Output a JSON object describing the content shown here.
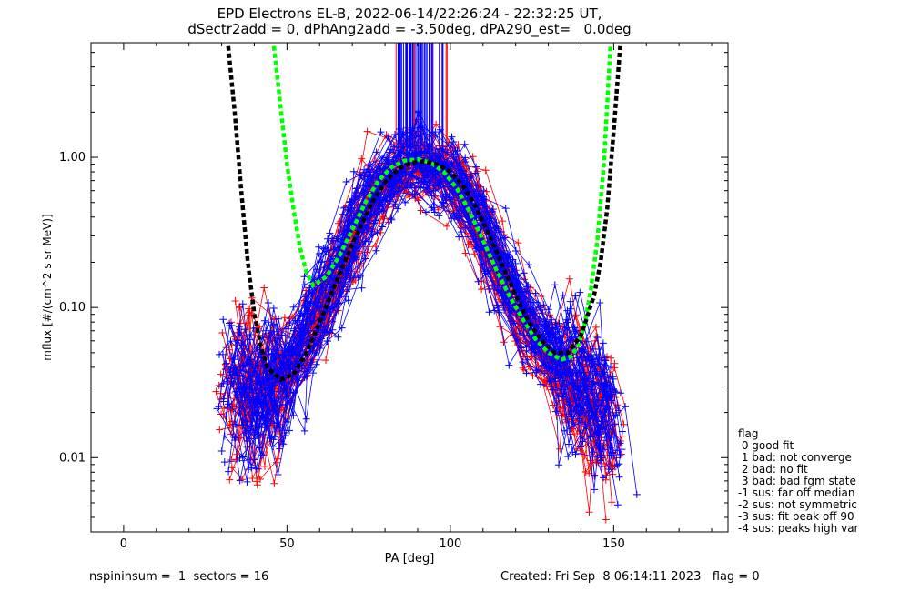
{
  "title_line1": "EPD Electrons EL-B, 2022-06-14/22:26:24 - 22:32:25 UT,",
  "title_line2": "dSectr2add = 0, dPhAng2add = -3.50deg, dPA290_est=   0.0deg",
  "flag_legend": {
    "header": "flag",
    "items": [
      " 0 good fit",
      " 1 bad: not converge",
      " 2 bad: no fit",
      " 3 bad: bad fgm state",
      "-1 sus: far off median",
      "-2 sus: not symmetric",
      "-3 sus: fit peak off 90",
      "-4 sus: peaks high var"
    ]
  },
  "footer": {
    "left": "nspininsum =  1  sectors = 16",
    "right": "Created: Fri Sep  8 06:14:11 2023   flag = 0"
  },
  "colors": {
    "series_red": "#ff0000",
    "series_blue": "#0000ff",
    "fit_green": "#00ff00",
    "fit_black": "#000000"
  },
  "chart_data": {
    "type": "line",
    "xlabel": "PA [deg]",
    "ylabel": "mflux [#/(cm^2 s sr MeV)]",
    "xlim": [
      -10,
      185
    ],
    "ylim": [
      0.0032,
      5.8
    ],
    "yscale": "log",
    "x_ticks": [
      0,
      50,
      100,
      150
    ],
    "x_tick_labels": [
      "0",
      "50",
      "100",
      "150"
    ],
    "y_ticks": [
      0.01,
      0.1,
      1.0
    ],
    "y_tick_labels": [
      "0.01",
      "0.10",
      "1.00"
    ],
    "series": [
      {
        "color": "red",
        "x": [
          33,
          38,
          42,
          46,
          50,
          55,
          60,
          65,
          70,
          75,
          80,
          85,
          90,
          95,
          100,
          105,
          110,
          115,
          120,
          125,
          130,
          135,
          140,
          145,
          148
        ],
        "y": [
          0.035,
          0.03,
          0.028,
          0.03,
          0.04,
          0.06,
          0.1,
          0.17,
          0.3,
          0.5,
          0.72,
          0.85,
          0.88,
          0.85,
          0.72,
          0.5,
          0.3,
          0.17,
          0.1,
          0.065,
          0.045,
          0.032,
          0.025,
          0.02,
          0.018
        ]
      },
      {
        "color": "blue",
        "x": [
          33,
          38,
          42,
          46,
          50,
          55,
          60,
          65,
          70,
          75,
          80,
          85,
          90,
          95,
          100,
          105,
          110,
          115,
          120,
          125,
          130,
          135,
          140,
          145,
          148
        ],
        "y": [
          0.03,
          0.026,
          0.025,
          0.028,
          0.042,
          0.065,
          0.11,
          0.19,
          0.33,
          0.55,
          0.75,
          0.86,
          0.9,
          0.86,
          0.74,
          0.52,
          0.32,
          0.18,
          0.11,
          0.07,
          0.048,
          0.035,
          0.028,
          0.022,
          0.02
        ]
      },
      {
        "name": "fit",
        "color": "green",
        "x": [
          46,
          48,
          50,
          52,
          54,
          56,
          58,
          62,
          66,
          70,
          74,
          78,
          82,
          86,
          90,
          94,
          98,
          102,
          106,
          110,
          114,
          118,
          122,
          126,
          130,
          134,
          137,
          139,
          141,
          143,
          145,
          147,
          149
        ],
        "y": [
          5.5,
          2.2,
          0.9,
          0.45,
          0.25,
          0.17,
          0.14,
          0.16,
          0.22,
          0.33,
          0.5,
          0.7,
          0.86,
          0.95,
          0.97,
          0.92,
          0.8,
          0.62,
          0.43,
          0.28,
          0.18,
          0.12,
          0.085,
          0.062,
          0.05,
          0.045,
          0.047,
          0.055,
          0.075,
          0.13,
          0.28,
          0.9,
          5.5
        ]
      },
      {
        "name": "fit",
        "color": "black",
        "x": [
          32,
          34,
          36,
          38,
          40,
          42,
          44,
          48,
          52,
          56,
          60,
          64,
          68,
          72,
          76,
          80,
          84,
          88,
          92,
          96,
          100,
          104,
          108,
          112,
          116,
          120,
          124,
          128,
          132,
          136,
          140,
          144,
          146,
          148,
          150,
          152
        ],
        "y": [
          5.5,
          2.0,
          0.6,
          0.2,
          0.09,
          0.055,
          0.04,
          0.033,
          0.036,
          0.05,
          0.08,
          0.13,
          0.21,
          0.33,
          0.5,
          0.68,
          0.83,
          0.92,
          0.94,
          0.9,
          0.8,
          0.64,
          0.46,
          0.3,
          0.19,
          0.12,
          0.08,
          0.06,
          0.05,
          0.05,
          0.065,
          0.12,
          0.2,
          0.45,
          1.5,
          5.5
        ]
      }
    ],
    "grid": false,
    "legend": "none"
  }
}
